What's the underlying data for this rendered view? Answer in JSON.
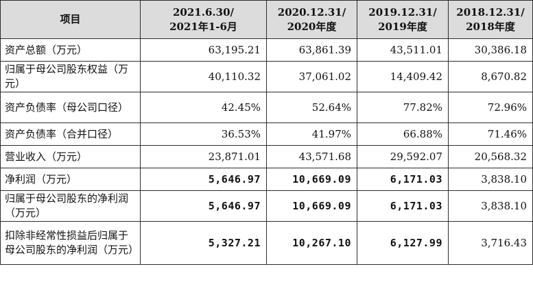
{
  "table": {
    "headers": [
      [
        "项目"
      ],
      [
        "2021.6.30/",
        "2021年1-6月"
      ],
      [
        "2020.12.31/",
        "2020年度"
      ],
      [
        "2019.12.31/",
        "2019年度"
      ],
      [
        "2018.12.31/",
        "2018年度"
      ]
    ],
    "rows": [
      {
        "label": "资产总额（万元）",
        "values": [
          "63,195.21",
          "63,861.39",
          "43,511.01",
          "30,386.18"
        ],
        "bold": [
          false,
          false,
          false,
          false
        ]
      },
      {
        "label": "归属于母公司股东权益（万元）",
        "values": [
          "40,110.32",
          "37,061.02",
          "14,409.42",
          "8,670.82"
        ],
        "bold": [
          false,
          false,
          false,
          false
        ]
      },
      {
        "label": "资产负债率（母公司口径）",
        "values": [
          "42.45%",
          "52.64%",
          "77.82%",
          "72.96%"
        ],
        "bold": [
          false,
          false,
          false,
          false
        ]
      },
      {
        "label": "资产负债率（合并口径）",
        "values": [
          "36.53%",
          "41.97%",
          "66.88%",
          "71.46%"
        ],
        "bold": [
          false,
          false,
          false,
          false
        ]
      },
      {
        "label": "营业收入（万元）",
        "values": [
          "23,871.01",
          "43,571.68",
          "29,592.07",
          "20,568.32"
        ],
        "bold": [
          false,
          false,
          false,
          false
        ]
      },
      {
        "label": "净利润（万元）",
        "values": [
          "5,646.97",
          "10,669.09",
          "6,171.03",
          "3,838.10"
        ],
        "bold": [
          true,
          true,
          true,
          false
        ]
      },
      {
        "label": "归属于母公司股东的净利润（万元）",
        "values": [
          "5,646.97",
          "10,669.09",
          "6,171.03",
          "3,838.10"
        ],
        "bold": [
          true,
          true,
          true,
          false
        ]
      },
      {
        "label": "扣除非经常性损益后归属于母公司股东的净利润（万元）",
        "values": [
          "5,327.21",
          "10,267.10",
          "6,127.99",
          "3,716.43"
        ],
        "bold": [
          true,
          true,
          true,
          false
        ]
      }
    ]
  }
}
